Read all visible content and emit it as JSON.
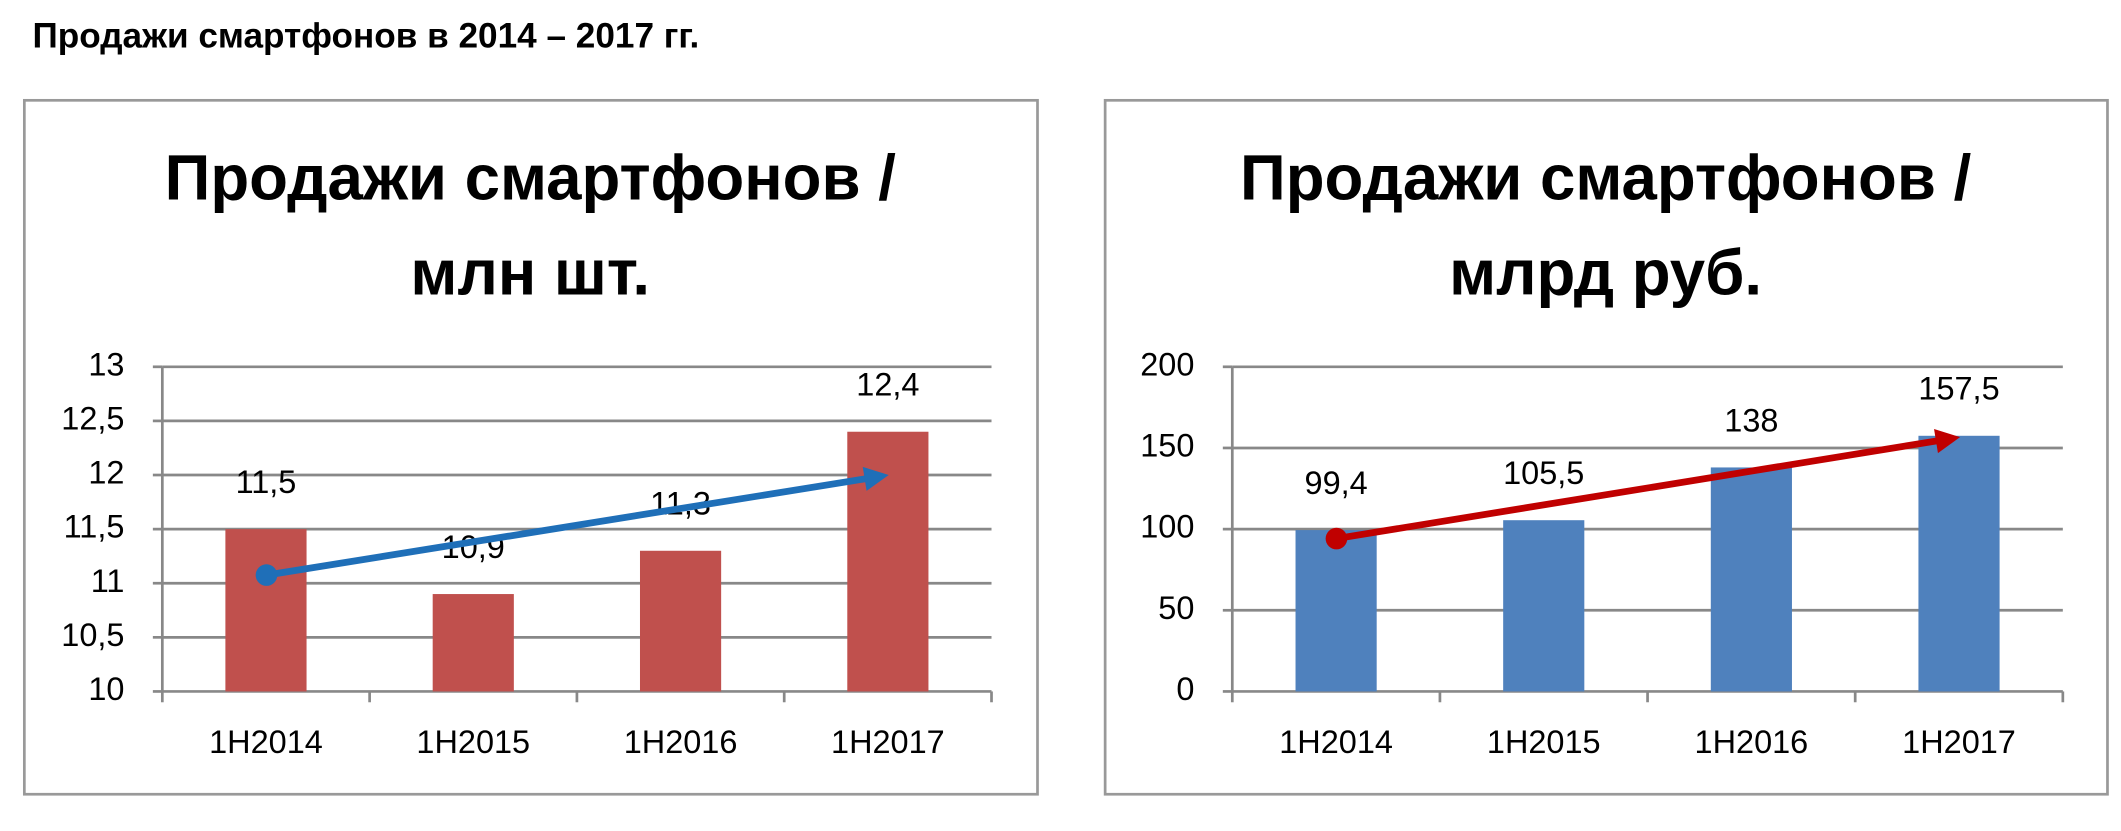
{
  "title": "Продажи смартфонов в 2014 – 2017 гг.",
  "chart_data": [
    {
      "type": "bar",
      "title": [
        "Продажи смартфонов /",
        "млн шт."
      ],
      "categories": [
        "1H2014",
        "1H2015",
        "1H2016",
        "1H2017"
      ],
      "values": [
        11.5,
        10.9,
        11.3,
        12.4
      ],
      "value_labels": [
        "11,5",
        "10,9",
        "11,3",
        "12,4"
      ],
      "color": "#c0504d",
      "ylim": [
        10,
        13
      ],
      "yticks": [
        10,
        {
          "value": 10.5,
          "label": "10,5"
        },
        11,
        {
          "value": 11.5,
          "label": "11,5"
        },
        12,
        {
          "value": 12.5,
          "label": "12,5"
        },
        13
      ],
      "grid": true
    },
    {
      "type": "bar",
      "title": [
        "Продажи смартфонов /",
        "млрд руб."
      ],
      "categories": [
        "1H2014",
        "1H2015",
        "1H2016",
        "1H2017"
      ],
      "values": [
        99.4,
        105.5,
        138,
        157.5
      ],
      "value_labels": [
        "99,4",
        "105,5",
        "138",
        "157,5"
      ],
      "color": "#4f81bd",
      "ylim": [
        0,
        200
      ],
      "yticks": [
        0,
        50,
        100,
        150,
        200
      ],
      "grid": true
    }
  ]
}
